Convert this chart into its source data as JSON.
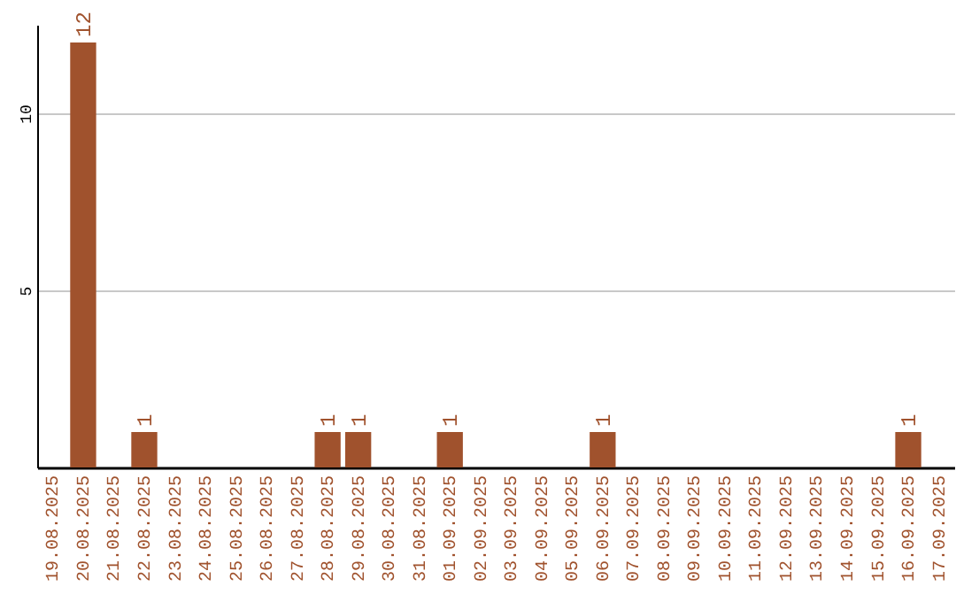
{
  "chart_data": {
    "type": "bar",
    "categories": [
      "19.08.2025",
      "20.08.2025",
      "21.08.2025",
      "22.08.2025",
      "23.08.2025",
      "24.08.2025",
      "25.08.2025",
      "26.08.2025",
      "27.08.2025",
      "28.08.2025",
      "29.08.2025",
      "30.08.2025",
      "31.08.2025",
      "01.09.2025",
      "02.09.2025",
      "03.09.2025",
      "04.09.2025",
      "05.09.2025",
      "06.09.2025",
      "07.09.2025",
      "08.09.2025",
      "09.09.2025",
      "10.09.2025",
      "11.09.2025",
      "12.09.2025",
      "13.09.2025",
      "14.09.2025",
      "15.09.2025",
      "16.09.2025",
      "17.09.2025"
    ],
    "values": [
      0,
      12,
      0,
      1,
      0,
      0,
      0,
      0,
      0,
      1,
      1,
      0,
      0,
      1,
      0,
      0,
      0,
      0,
      1,
      0,
      0,
      0,
      0,
      0,
      0,
      0,
      0,
      0,
      1,
      0
    ],
    "value_labels": [
      null,
      "12",
      null,
      "1",
      null,
      null,
      null,
      null,
      null,
      "1",
      "1",
      null,
      null,
      "1",
      null,
      null,
      null,
      null,
      "1",
      null,
      null,
      null,
      null,
      null,
      null,
      null,
      null,
      null,
      "1",
      null
    ],
    "color": "#a0522d",
    "ylim": [
      0,
      12.5
    ],
    "yticks": [
      5,
      10
    ],
    "grid": "y"
  }
}
